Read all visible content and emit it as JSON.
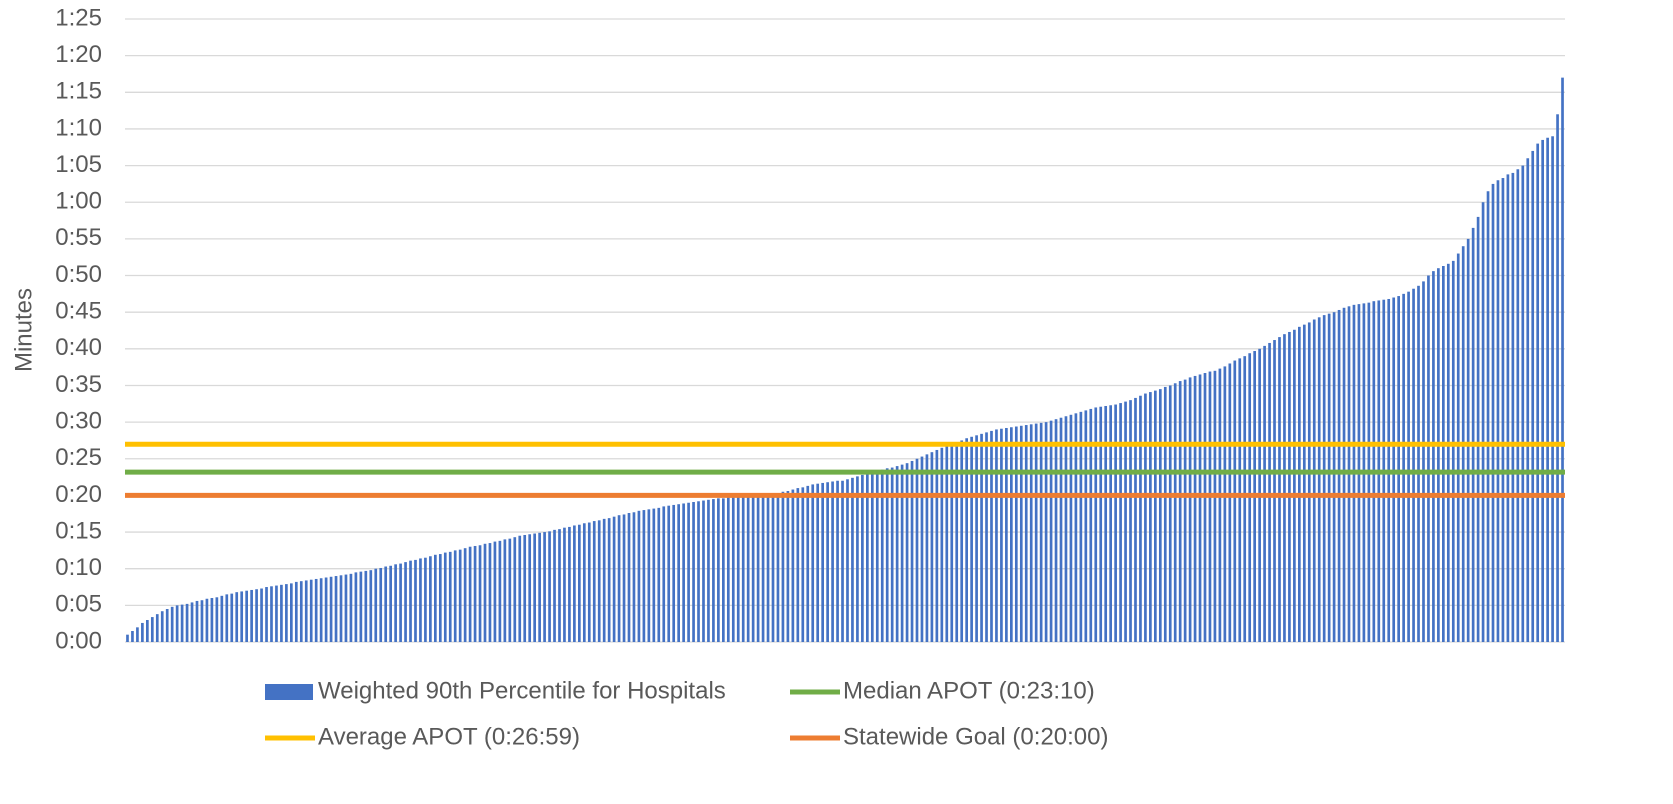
{
  "chart_data": {
    "type": "bar",
    "y_label": "Minutes",
    "ylim": [
      0,
      85
    ],
    "yticks": [
      {
        "value": 0,
        "label": "0:00"
      },
      {
        "value": 5,
        "label": "0:05"
      },
      {
        "value": 10,
        "label": "0:10"
      },
      {
        "value": 15,
        "label": "0:15"
      },
      {
        "value": 20,
        "label": "0:20"
      },
      {
        "value": 25,
        "label": "0:25"
      },
      {
        "value": 30,
        "label": "0:30"
      },
      {
        "value": 35,
        "label": "0:35"
      },
      {
        "value": 40,
        "label": "0:40"
      },
      {
        "value": 45,
        "label": "0:45"
      },
      {
        "value": 50,
        "label": "0:50"
      },
      {
        "value": 55,
        "label": "0:55"
      },
      {
        "value": 60,
        "label": "1:00"
      },
      {
        "value": 65,
        "label": "1:05"
      },
      {
        "value": 70,
        "label": "1:10"
      },
      {
        "value": 75,
        "label": "1:15"
      },
      {
        "value": 80,
        "label": "1:20"
      },
      {
        "value": 85,
        "label": "1:25"
      }
    ],
    "grid": true,
    "legend": "bottom",
    "series": [
      {
        "name": "Weighted 90th Percentile for Hospitals",
        "color": "#4472c4",
        "type": "bar",
        "values": [
          1.0,
          1.5,
          2.0,
          2.6,
          3.0,
          3.4,
          3.8,
          4.2,
          4.5,
          4.8,
          5.0,
          5.1,
          5.2,
          5.4,
          5.6,
          5.7,
          5.9,
          6.0,
          6.1,
          6.3,
          6.5,
          6.6,
          6.8,
          6.9,
          7.0,
          7.1,
          7.2,
          7.3,
          7.5,
          7.6,
          7.7,
          7.8,
          7.9,
          8.0,
          8.2,
          8.3,
          8.4,
          8.5,
          8.6,
          8.7,
          8.8,
          8.9,
          9.0,
          9.1,
          9.2,
          9.3,
          9.5,
          9.6,
          9.7,
          9.8,
          10.0,
          10.1,
          10.3,
          10.4,
          10.6,
          10.7,
          10.9,
          11.1,
          11.2,
          11.4,
          11.5,
          11.7,
          11.9,
          12.0,
          12.2,
          12.3,
          12.5,
          12.6,
          12.8,
          13.0,
          13.1,
          13.2,
          13.4,
          13.5,
          13.7,
          13.8,
          14.0,
          14.1,
          14.3,
          14.5,
          14.6,
          14.7,
          14.8,
          14.9,
          15.0,
          15.1,
          15.3,
          15.4,
          15.6,
          15.7,
          15.9,
          16.0,
          16.2,
          16.3,
          16.5,
          16.6,
          16.8,
          16.9,
          17.1,
          17.3,
          17.4,
          17.6,
          17.7,
          17.9,
          18.0,
          18.1,
          18.2,
          18.3,
          18.5,
          18.6,
          18.7,
          18.8,
          18.9,
          19.0,
          19.1,
          19.2,
          19.3,
          19.4,
          19.5,
          19.6,
          19.6,
          19.7,
          19.7,
          19.8,
          19.8,
          19.9,
          19.9,
          20.0,
          20.0,
          20.0,
          20.1,
          20.3,
          20.5,
          20.6,
          20.8,
          21.0,
          21.1,
          21.3,
          21.5,
          21.6,
          21.7,
          21.8,
          21.9,
          22.0,
          22.0,
          22.2,
          22.4,
          22.6,
          22.8,
          23.0,
          23.2,
          23.4,
          23.5,
          23.7,
          23.8,
          24.0,
          24.2,
          24.4,
          24.7,
          25.0,
          25.3,
          25.6,
          25.9,
          26.2,
          26.5,
          26.8,
          27.0,
          27.2,
          27.5,
          27.8,
          28.0,
          28.2,
          28.4,
          28.6,
          28.8,
          29.0,
          29.1,
          29.2,
          29.3,
          29.4,
          29.5,
          29.6,
          29.7,
          29.8,
          29.9,
          30.0,
          30.2,
          30.4,
          30.6,
          30.8,
          31.0,
          31.2,
          31.4,
          31.6,
          31.8,
          32.0,
          32.1,
          32.2,
          32.3,
          32.4,
          32.6,
          32.8,
          33.0,
          33.3,
          33.6,
          33.9,
          34.1,
          34.3,
          34.5,
          34.8,
          35.0,
          35.3,
          35.6,
          35.8,
          36.1,
          36.3,
          36.5,
          36.7,
          36.9,
          37.0,
          37.3,
          37.6,
          38.0,
          38.4,
          38.7,
          39.0,
          39.4,
          39.7,
          40.0,
          40.4,
          40.8,
          41.2,
          41.6,
          42.0,
          42.3,
          42.6,
          43.0,
          43.3,
          43.6,
          44.0,
          44.3,
          44.6,
          44.8,
          45.0,
          45.3,
          45.6,
          45.8,
          46.0,
          46.1,
          46.2,
          46.3,
          46.5,
          46.6,
          46.7,
          46.8,
          47.0,
          47.2,
          47.5,
          47.8,
          48.2,
          48.6,
          49.2,
          50.0,
          50.6,
          51.0,
          51.3,
          51.6,
          52.0,
          53.0,
          54.0,
          55.0,
          56.5,
          58.0,
          60.0,
          61.5,
          62.5,
          63.0,
          63.3,
          63.8,
          64.0,
          64.5,
          65.0,
          66.0,
          67.0,
          68.0,
          68.5,
          68.8,
          69.0,
          72.0,
          77.0
        ]
      },
      {
        "name": "Median APOT (0:23:10)",
        "color": "#70ad47",
        "type": "line",
        "values": [
          23.17
        ]
      },
      {
        "name": "Average APOT (0:26:59)",
        "color": "#ffc000",
        "type": "line",
        "values": [
          26.98
        ]
      },
      {
        "name": "Statewide Goal (0:20:00)",
        "color": "#ed7d31",
        "type": "line",
        "values": [
          20
        ]
      }
    ]
  }
}
